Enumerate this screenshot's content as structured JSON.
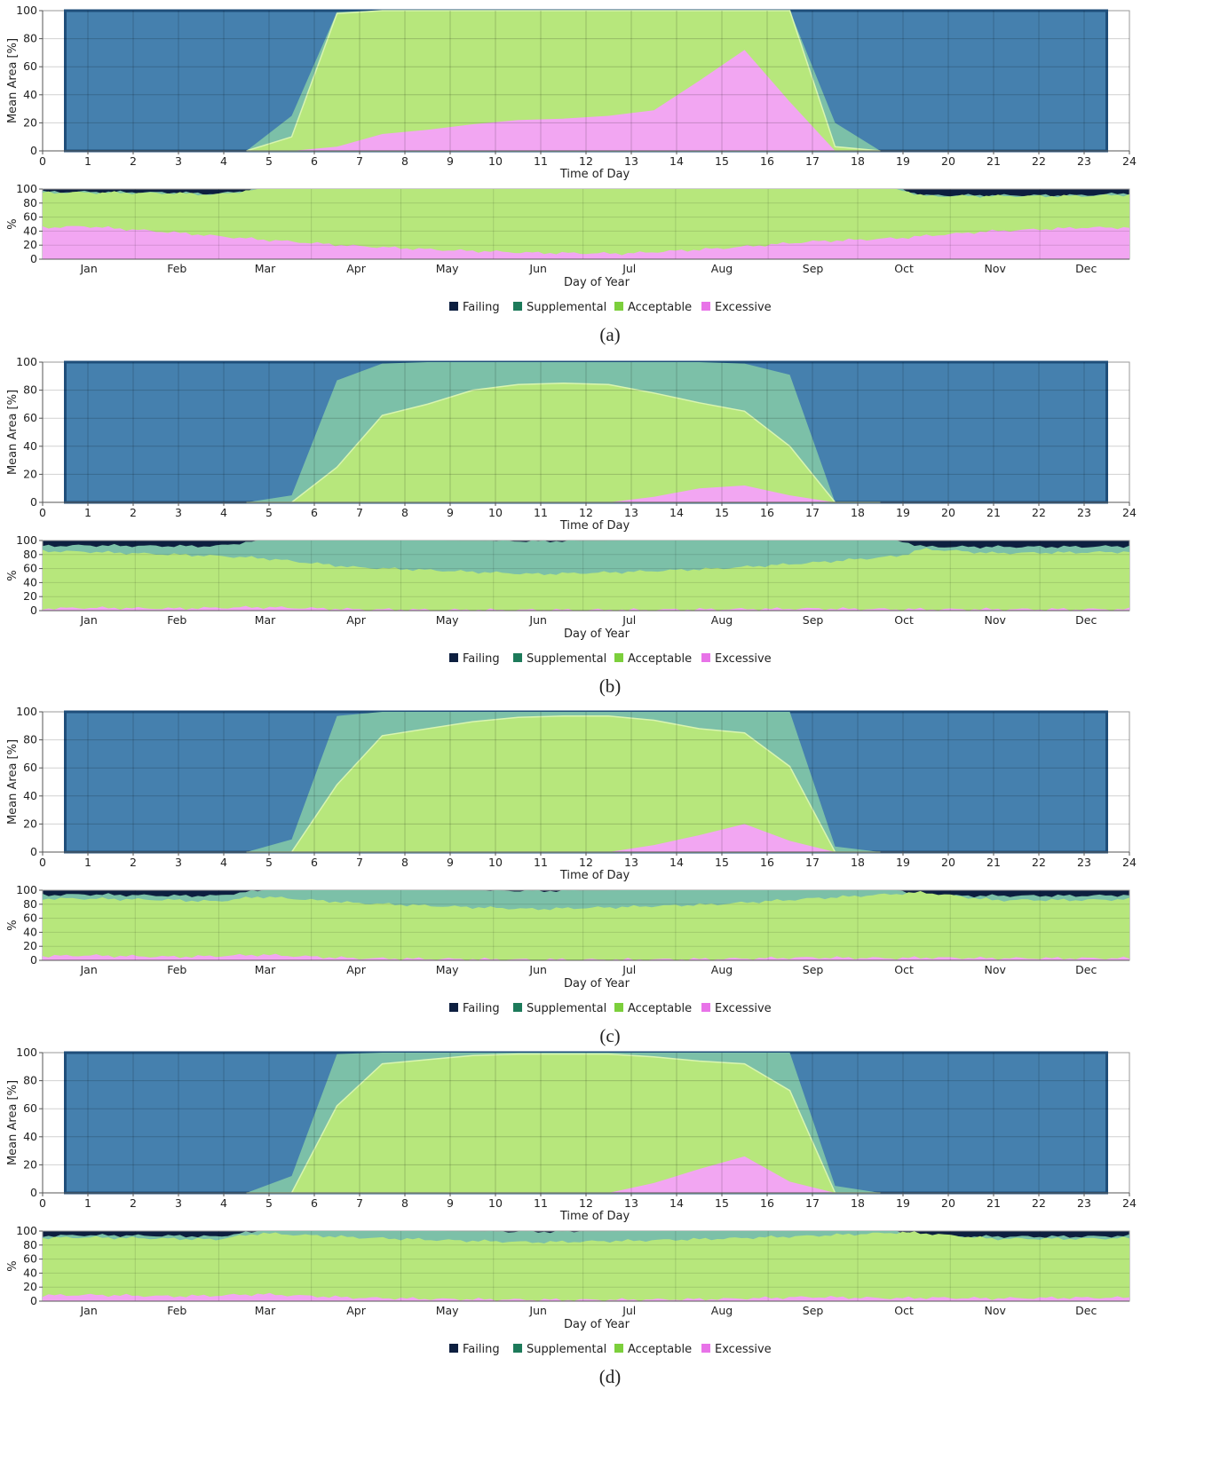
{
  "colors": {
    "Failing": "#0d1f40",
    "Supplemental": "#7cc0a8",
    "Acceptable": "#b7e77c",
    "Excessive": "#f2a6f2",
    "night": "#4580ae",
    "night_edge": "#1f4e7a",
    "legend_Failing": "#0d1f40",
    "legend_Supplemental": "#1d7a5a",
    "legend_Acceptable": "#7ccf3c",
    "legend_Excessive": "#e873e8"
  },
  "legend": [
    "Failing",
    "Supplemental",
    "Acceptable",
    "Excessive"
  ],
  "daily_axis": {
    "ylabel": "Mean Area [%]",
    "xlabel": "Time of Day",
    "xticks": [
      "0",
      "1",
      "2",
      "3",
      "4",
      "5",
      "6",
      "7",
      "8",
      "9",
      "10",
      "11",
      "12",
      "13",
      "14",
      "15",
      "16",
      "17",
      "18",
      "19",
      "20",
      "21",
      "22",
      "23",
      "24"
    ],
    "yticks": [
      "0",
      "20",
      "40",
      "60",
      "80",
      "100"
    ]
  },
  "annual_axis": {
    "ylabel": "%",
    "xlabel": "Day of Year",
    "months": [
      "Jan",
      "Feb",
      "Mar",
      "Apr",
      "May",
      "Jun",
      "Jul",
      "Aug",
      "Sep",
      "Oct",
      "Nov",
      "Dec"
    ],
    "yticks": [
      "0",
      "20",
      "40",
      "60",
      "80",
      "100"
    ]
  },
  "chart_data": [
    {
      "panel": "(a)",
      "type": "area",
      "xlabel": "Time of Day",
      "ylabel": "Mean Area [%]",
      "xlim": [
        0,
        24
      ],
      "ylim": [
        0,
        100
      ],
      "x": [
        4.5,
        5.5,
        6.5,
        7.5,
        8.5,
        9.5,
        10.5,
        11.5,
        12.5,
        13.5,
        14.5,
        15.5,
        16.5,
        17.5,
        18.5
      ],
      "series": [
        {
          "name": "Excessive",
          "values": [
            0,
            0,
            3,
            12,
            15,
            19,
            22,
            23,
            25,
            29,
            50,
            72,
            35,
            0,
            0
          ]
        },
        {
          "name": "Acceptable",
          "values": [
            0,
            10,
            98,
            100,
            100,
            100,
            100,
            100,
            100,
            100,
            100,
            100,
            100,
            3,
            0
          ]
        },
        {
          "name": "Supplemental",
          "values": [
            0,
            25,
            99,
            100,
            100,
            100,
            100,
            100,
            100,
            100,
            100,
            100,
            100,
            20,
            0
          ]
        }
      ],
      "annual": {
        "type": "area",
        "xlabel": "Day of Year",
        "ylabel": "%",
        "ylim": [
          0,
          100
        ],
        "day": [
          1,
          15,
          45,
          59,
          74,
          105,
          135,
          166,
          196,
          227,
          258,
          288,
          296,
          319,
          349,
          365
        ],
        "series": [
          {
            "name": "Excessive",
            "values": [
              45,
              47,
              38,
              33,
              28,
              19,
              13,
              9,
              8,
              15,
              25,
              30,
              33,
              40,
              45,
              45
            ]
          },
          {
            "name": "Acceptable",
            "values": [
              95,
              95,
              94,
              92,
              100,
              100,
              100,
              100,
              100,
              100,
              100,
              100,
              90,
              90,
              90,
              92
            ]
          },
          {
            "name": "Supplemental",
            "values": [
              96,
              96,
              95,
              93,
              100,
              100,
              100,
              100,
              100,
              100,
              100,
              100,
              91,
              91,
              91,
              94
            ]
          }
        ]
      }
    },
    {
      "panel": "(b)",
      "type": "area",
      "xlabel": "Time of Day",
      "ylabel": "Mean Area [%]",
      "xlim": [
        0,
        24
      ],
      "ylim": [
        0,
        100
      ],
      "x": [
        4.5,
        5.5,
        6.5,
        7.5,
        8.5,
        9.5,
        10.5,
        11.5,
        12.5,
        13.5,
        14.5,
        15.5,
        16.5,
        17.5,
        18.5
      ],
      "series": [
        {
          "name": "Excessive",
          "values": [
            0,
            0,
            0,
            0,
            0,
            0,
            0,
            0,
            0,
            4,
            10,
            12,
            5,
            0,
            0
          ]
        },
        {
          "name": "Acceptable",
          "values": [
            0,
            0,
            25,
            62,
            70,
            80,
            84,
            85,
            84,
            78,
            71,
            65,
            40,
            0,
            0
          ]
        },
        {
          "name": "Supplemental",
          "values": [
            0,
            5,
            87,
            99,
            100,
            100,
            100,
            100,
            100,
            100,
            100,
            99,
            91,
            0,
            0
          ]
        }
      ],
      "annual": {
        "type": "area",
        "xlabel": "Day of Year",
        "ylabel": "%",
        "ylim": [
          0,
          100
        ],
        "day": [
          1,
          15,
          45,
          59,
          74,
          105,
          135,
          166,
          196,
          227,
          258,
          288,
          296,
          319,
          349,
          365
        ],
        "series": [
          {
            "name": "Excessive",
            "values": [
              3,
              4,
              3,
              4,
              5,
              2,
              1,
              1,
              1,
              2,
              3,
              2,
              2,
              2,
              2,
              2
            ]
          },
          {
            "name": "Acceptable",
            "values": [
              85,
              84,
              80,
              78,
              75,
              62,
              57,
              52,
              55,
              60,
              68,
              78,
              88,
              82,
              83,
              84
            ]
          },
          {
            "name": "Supplemental",
            "values": [
              92,
              93,
              92,
              92,
              100,
              100,
              100,
              99,
              100,
              100,
              100,
              100,
              91,
              91,
              91,
              92
            ]
          }
        ]
      }
    },
    {
      "panel": "(c)",
      "type": "area",
      "xlabel": "Time of Day",
      "ylabel": "Mean Area [%]",
      "xlim": [
        0,
        24
      ],
      "ylim": [
        0,
        100
      ],
      "x": [
        4.5,
        5.5,
        6.5,
        7.5,
        8.5,
        9.5,
        10.5,
        11.5,
        12.5,
        13.5,
        14.5,
        15.5,
        16.5,
        17.5,
        18.5
      ],
      "series": [
        {
          "name": "Excessive",
          "values": [
            0,
            0,
            0,
            0,
            0,
            0,
            0,
            0,
            0,
            5,
            12,
            20,
            8,
            0,
            0
          ]
        },
        {
          "name": "Acceptable",
          "values": [
            0,
            0,
            48,
            83,
            88,
            93,
            96,
            97,
            97,
            94,
            88,
            85,
            61,
            0,
            0
          ]
        },
        {
          "name": "Supplemental",
          "values": [
            0,
            9,
            97,
            100,
            100,
            100,
            100,
            100,
            100,
            100,
            100,
            100,
            100,
            4,
            0
          ]
        }
      ],
      "annual": {
        "type": "area",
        "xlabel": "Day of Year",
        "ylabel": "%",
        "ylim": [
          0,
          100
        ],
        "day": [
          1,
          15,
          45,
          59,
          74,
          105,
          135,
          166,
          196,
          227,
          258,
          288,
          296,
          319,
          349,
          365
        ],
        "series": [
          {
            "name": "Excessive",
            "values": [
              6,
              7,
              5,
              6,
              8,
              3,
              2,
              1,
              1,
              2,
              4,
              3,
              4,
              3,
              3,
              3
            ]
          },
          {
            "name": "Acceptable",
            "values": [
              88,
              88,
              86,
              84,
              91,
              82,
              77,
              73,
              76,
              80,
              88,
              95,
              97,
              86,
              86,
              87
            ]
          },
          {
            "name": "Supplemental",
            "values": [
              93,
              94,
              92,
              92,
              100,
              100,
              100,
              99,
              100,
              100,
              100,
              100,
              92,
              92,
              92,
              93
            ]
          }
        ]
      }
    },
    {
      "panel": "(d)",
      "type": "area",
      "xlabel": "Time of Day",
      "ylabel": "Mean Area [%]",
      "xlim": [
        0,
        24
      ],
      "ylim": [
        0,
        100
      ],
      "x": [
        4.5,
        5.5,
        6.5,
        7.5,
        8.5,
        9.5,
        10.5,
        11.5,
        12.5,
        13.5,
        14.5,
        15.5,
        16.5,
        17.5,
        18.5
      ],
      "series": [
        {
          "name": "Excessive",
          "values": [
            0,
            0,
            0,
            0,
            0,
            0,
            0,
            0,
            0,
            7,
            17,
            26,
            8,
            0,
            0
          ]
        },
        {
          "name": "Acceptable",
          "values": [
            0,
            0,
            62,
            92,
            95,
            98,
            99,
            99,
            99,
            97,
            94,
            92,
            73,
            0,
            0
          ]
        },
        {
          "name": "Supplemental",
          "values": [
            0,
            12,
            99,
            100,
            100,
            100,
            100,
            100,
            100,
            100,
            100,
            100,
            100,
            5,
            0
          ]
        }
      ],
      "annual": {
        "type": "area",
        "xlabel": "Day of Year",
        "ylabel": "%",
        "ylim": [
          0,
          100
        ],
        "day": [
          1,
          15,
          45,
          59,
          74,
          105,
          135,
          166,
          196,
          227,
          258,
          288,
          296,
          319,
          349,
          365
        ],
        "series": [
          {
            "name": "Excessive",
            "values": [
              8,
              9,
              7,
              8,
              10,
              5,
              3,
              2,
              2,
              3,
              6,
              4,
              5,
              4,
              5,
              5
            ]
          },
          {
            "name": "Acceptable",
            "values": [
              90,
              91,
              89,
              88,
              97,
              91,
              87,
              84,
              86,
              89,
              93,
              98,
              97,
              89,
              89,
              90
            ]
          },
          {
            "name": "Supplemental",
            "values": [
              93,
              94,
              93,
              92,
              100,
              100,
              100,
              99,
              100,
              100,
              100,
              100,
              92,
              92,
              92,
              93
            ]
          }
        ]
      }
    }
  ]
}
